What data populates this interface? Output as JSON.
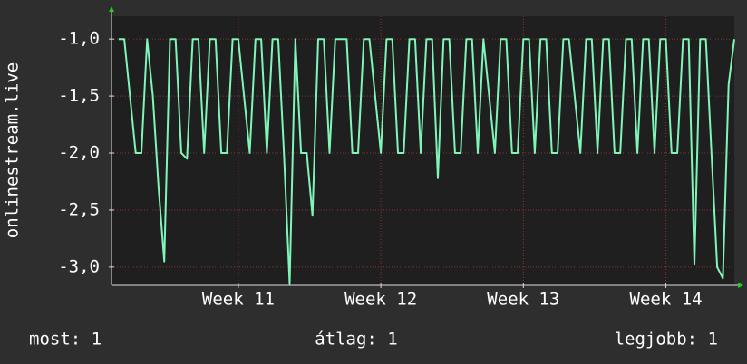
{
  "chart_data": {
    "type": "line",
    "y_label": "onlinestream.live",
    "x": [
      10.16,
      10.2,
      10.24,
      10.28,
      10.32,
      10.36,
      10.4,
      10.44,
      10.48,
      10.52,
      10.56,
      10.6,
      10.64,
      10.68,
      10.72,
      10.76,
      10.8,
      10.84,
      10.88,
      10.92,
      10.96,
      11,
      11.04,
      11.08,
      11.12,
      11.16,
      11.2,
      11.24,
      11.28,
      11.32,
      11.36,
      11.4,
      11.44,
      11.48,
      11.52,
      11.56,
      11.6,
      11.64,
      11.68,
      11.72,
      11.76,
      11.8,
      11.84,
      11.88,
      11.92,
      11.96,
      12,
      12.04,
      12.08,
      12.12,
      12.16,
      12.2,
      12.24,
      12.28,
      12.32,
      12.36,
      12.4,
      12.44,
      12.48,
      12.52,
      12.56,
      12.6,
      12.64,
      12.68,
      12.72,
      12.76,
      12.8,
      12.84,
      12.88,
      12.92,
      12.96,
      13,
      13.04,
      13.08,
      13.12,
      13.16,
      13.2,
      13.24,
      13.28,
      13.32,
      13.36,
      13.4,
      13.44,
      13.48,
      13.52,
      13.56,
      13.6,
      13.64,
      13.68,
      13.72,
      13.76,
      13.8,
      13.84,
      13.88,
      13.92,
      13.96,
      14,
      14.04,
      14.08,
      14.12,
      14.16,
      14.2,
      14.24,
      14.28,
      14.32,
      14.36,
      14.4,
      14.44,
      14.48
    ],
    "series": [
      {
        "color": "#7ff5b8",
        "values": [
          -1,
          -1,
          -1.5,
          -2,
          -2,
          -1,
          -1.5,
          -2.3,
          -2.95,
          -1,
          -1,
          -2,
          -2.05,
          -1,
          -1,
          -2,
          -1,
          -1,
          -2,
          -2,
          -1,
          -1,
          -1.5,
          -2,
          -1,
          -1,
          -2,
          -1,
          -1,
          -2,
          -3.15,
          -1,
          -2,
          -2,
          -2.55,
          -1,
          -1,
          -2,
          -1,
          -1,
          -1,
          -2,
          -2,
          -1,
          -1,
          -1.5,
          -2,
          -1,
          -1,
          -2,
          -2,
          -1,
          -1,
          -2,
          -1,
          -1,
          -2.22,
          -1,
          -1,
          -2,
          -2,
          -1,
          -1,
          -2,
          -1,
          -1.5,
          -2,
          -1,
          -1,
          -2,
          -2,
          -1,
          -1,
          -2,
          -1,
          -1,
          -2,
          -2,
          -1,
          -1,
          -1.5,
          -2,
          -1,
          -1,
          -2,
          -1,
          -1,
          -2,
          -2,
          -1,
          -1,
          -2,
          -1,
          -1,
          -2,
          -1,
          -1,
          -2,
          -2,
          -1,
          -1,
          -2.98,
          -1,
          -1,
          -2,
          -3.0,
          -3.1,
          -1.4,
          -1
        ]
      }
    ],
    "xlim": [
      10.11,
      14.48
    ],
    "xticks": [
      {
        "value": 11,
        "label": "Week 11"
      },
      {
        "value": 12,
        "label": "Week 12"
      },
      {
        "value": 13,
        "label": "Week 13"
      },
      {
        "value": 14,
        "label": "Week 14"
      }
    ],
    "ylim": [
      -3.16,
      -0.8
    ],
    "yticks": [
      {
        "value": -1,
        "label": "-1,0"
      },
      {
        "value": -1.5,
        "label": "-1,5"
      },
      {
        "value": -2,
        "label": "-2,0"
      },
      {
        "value": -2.5,
        "label": "-2,5"
      },
      {
        "value": -3,
        "label": "-3,0"
      }
    ],
    "grid": true,
    "stats": [
      "most: 1",
      "átlag: 1",
      "legjobb: 1"
    ]
  }
}
